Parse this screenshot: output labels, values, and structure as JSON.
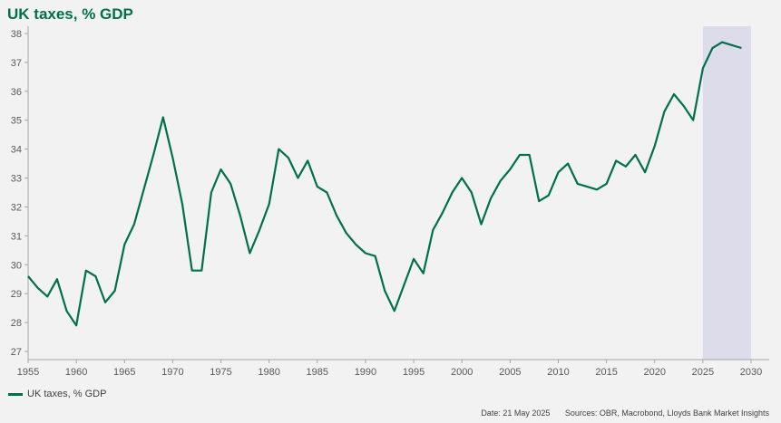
{
  "title": "UK taxes, % GDP",
  "legend_label": "UK taxes, % GDP",
  "footer": {
    "date": "Date: 21 May 2025",
    "sources": "Sources: OBR, Macrobond, Lloyds Bank Market Insights"
  },
  "colors": {
    "line": "#00704a",
    "forecast_band": "#dcdcea",
    "axis": "#a6a6a6",
    "background": "#f2f2f2"
  },
  "chart_data": {
    "type": "line",
    "title": "UK taxes, % GDP",
    "xlabel": "",
    "ylabel": "",
    "xlim": [
      1955,
      2031
    ],
    "ylim": [
      27,
      38
    ],
    "x_ticks": [
      1955,
      1960,
      1965,
      1970,
      1975,
      1980,
      1985,
      1990,
      1995,
      2000,
      2005,
      2010,
      2015,
      2020,
      2025,
      2030
    ],
    "y_ticks": [
      27,
      28,
      29,
      30,
      31,
      32,
      33,
      34,
      35,
      36,
      37,
      38
    ],
    "grid": false,
    "legend": "bottom-left",
    "shaded_region": {
      "x_start": 2025,
      "x_end": 2030
    },
    "series": [
      {
        "name": "UK taxes, % GDP",
        "x": [
          1955,
          1956,
          1957,
          1958,
          1959,
          1960,
          1961,
          1962,
          1963,
          1964,
          1965,
          1966,
          1967,
          1968,
          1969,
          1970,
          1971,
          1972,
          1973,
          1974,
          1975,
          1976,
          1977,
          1978,
          1979,
          1980,
          1981,
          1982,
          1983,
          1984,
          1985,
          1986,
          1987,
          1988,
          1989,
          1990,
          1991,
          1992,
          1993,
          1994,
          1995,
          1996,
          1997,
          1998,
          1999,
          2000,
          2001,
          2002,
          2003,
          2004,
          2005,
          2006,
          2007,
          2008,
          2009,
          2010,
          2011,
          2012,
          2013,
          2014,
          2015,
          2016,
          2017,
          2018,
          2019,
          2020,
          2021,
          2022,
          2023,
          2024,
          2025,
          2026,
          2027,
          2028,
          2029
        ],
        "values": [
          29.6,
          29.2,
          28.9,
          29.5,
          28.4,
          27.9,
          29.8,
          29.6,
          28.7,
          29.1,
          30.7,
          31.4,
          32.6,
          33.8,
          35.1,
          33.7,
          32.1,
          29.8,
          29.8,
          32.5,
          33.3,
          32.8,
          31.7,
          30.4,
          31.2,
          32.1,
          34.0,
          33.7,
          33.0,
          33.6,
          32.7,
          32.5,
          31.7,
          31.1,
          30.7,
          30.4,
          30.3,
          29.1,
          28.4,
          29.3,
          30.2,
          29.7,
          31.2,
          31.8,
          32.5,
          33.0,
          32.5,
          31.4,
          32.3,
          32.9,
          33.3,
          33.8,
          33.8,
          32.2,
          32.4,
          33.2,
          33.5,
          32.8,
          32.7,
          32.6,
          32.8,
          33.6,
          33.4,
          33.8,
          33.2,
          34.1,
          35.3,
          35.9,
          35.5,
          35.0,
          36.8,
          37.5,
          37.7,
          37.6,
          37.5
        ]
      }
    ]
  }
}
